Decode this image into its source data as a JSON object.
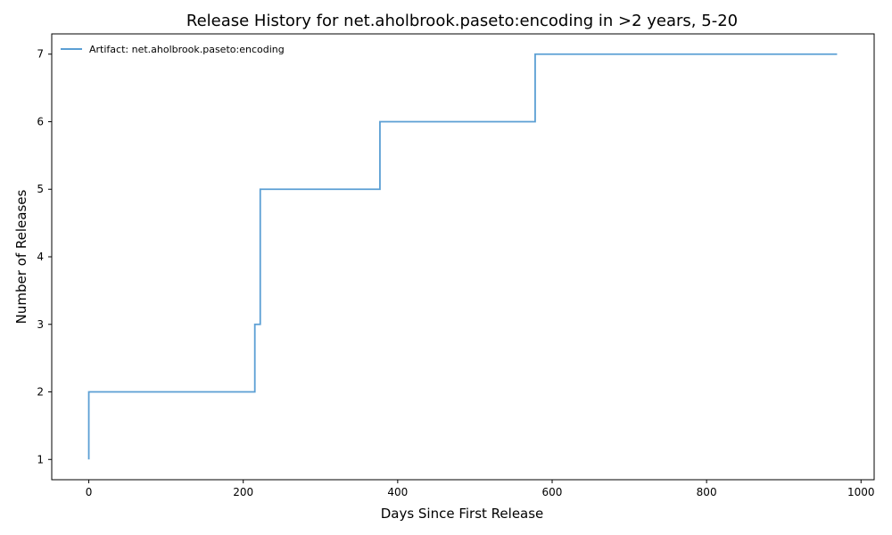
{
  "chart_data": {
    "type": "line",
    "step": "post",
    "title": "Release History for net.aholbrook.paseto:encoding in >2 years, 5-20",
    "xlabel": "Days Since First Release",
    "ylabel": "Number of Releases",
    "xlim": [
      -48,
      1017
    ],
    "ylim": [
      0.7,
      7.3
    ],
    "xticks": [
      0,
      200,
      400,
      600,
      800,
      1000
    ],
    "yticks": [
      1,
      2,
      3,
      4,
      5,
      6,
      7
    ],
    "grid": false,
    "legend_position": "top-left",
    "series": [
      {
        "name": "Artifact: net.aholbrook.paseto:encoding",
        "color": "#5b9fd4",
        "x": [
          0,
          0,
          215,
          222,
          377,
          578,
          969
        ],
        "y": [
          1,
          2,
          3,
          5,
          6,
          7,
          7
        ]
      }
    ]
  }
}
